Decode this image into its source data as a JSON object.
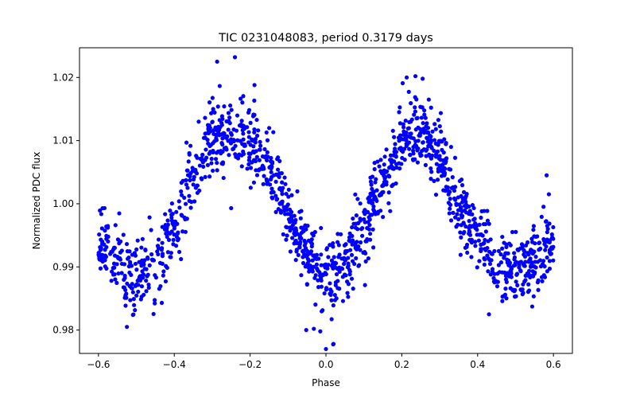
{
  "chart_data": {
    "type": "scatter",
    "title": "TIC 0231048083, period 0.3179 days",
    "xlabel": "Phase",
    "ylabel": "Normalized PDC flux",
    "xlim": [
      -0.65,
      0.65
    ],
    "ylim": [
      0.9763,
      1.0247
    ],
    "xticks": [
      -0.6,
      -0.4,
      -0.2,
      0.0,
      0.2,
      0.4,
      0.6
    ],
    "xtick_labels": [
      "−0.6",
      "−0.4",
      "−0.2",
      "0.0",
      "0.2",
      "0.4",
      "0.6"
    ],
    "yticks": [
      0.98,
      0.99,
      1.0,
      1.01,
      1.02
    ],
    "ytick_labels": [
      "0.98",
      "0.99",
      "1.00",
      "1.01",
      "1.02"
    ],
    "grid": false,
    "marker_color": "#0000ff",
    "x_range_of_points": [
      -0.6,
      0.6
    ],
    "phase_curve": {
      "phase": [
        -0.6,
        -0.55,
        -0.5,
        -0.45,
        -0.4,
        -0.35,
        -0.3,
        -0.25,
        -0.2,
        -0.15,
        -0.1,
        -0.05,
        0.0,
        0.05,
        0.1,
        0.15,
        0.2,
        0.25,
        0.3,
        0.35,
        0.4,
        0.45,
        0.5,
        0.55,
        0.6
      ],
      "flux": [
        0.9942,
        0.9905,
        0.9887,
        0.9905,
        0.996,
        1.0042,
        1.0111,
        1.0122,
        1.0102,
        1.0053,
        0.9985,
        0.992,
        0.9888,
        0.9905,
        0.9962,
        1.0035,
        1.0105,
        1.0115,
        1.0072,
        0.9998,
        0.9945,
        0.9903,
        0.9888,
        0.9904,
        0.9942
      ]
    },
    "scatter_sigma": 0.0028,
    "n_points": 1500,
    "outliers": [
      {
        "x": -0.287,
        "y": 1.0225
      },
      {
        "x": -0.24,
        "y": 1.0232
      },
      {
        "x": -0.052,
        "y": 0.98
      },
      {
        "x": -0.032,
        "y": 0.9802
      },
      {
        "x": -0.015,
        "y": 0.9798
      },
      {
        "x": 0.0,
        "y": 0.977
      },
      {
        "x": 0.02,
        "y": 0.9778
      },
      {
        "x": 0.213,
        "y": 1.02
      },
      {
        "x": 0.236,
        "y": 1.0202
      },
      {
        "x": 0.255,
        "y": 1.0198
      },
      {
        "x": 0.582,
        "y": 1.0045
      },
      {
        "x": 0.588,
        "y": 1.0015
      },
      {
        "x": -0.25,
        "y": 0.9993
      },
      {
        "x": 0.43,
        "y": 0.9825
      },
      {
        "x": -0.525,
        "y": 0.9805
      }
    ]
  }
}
